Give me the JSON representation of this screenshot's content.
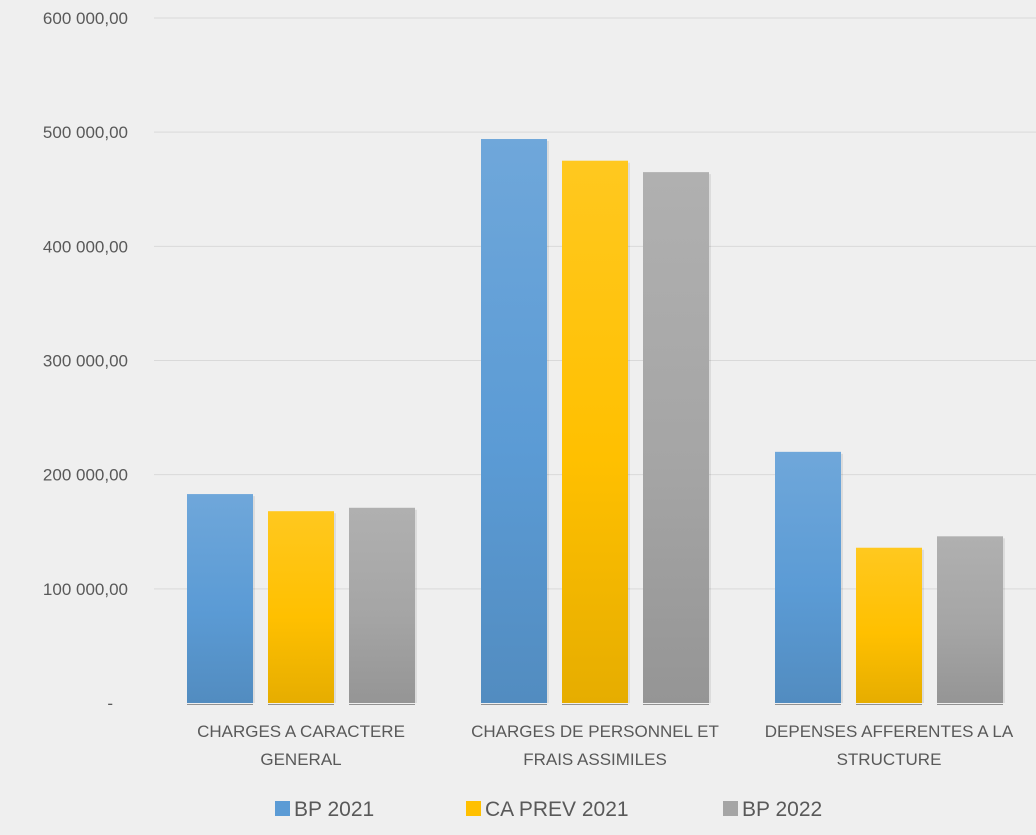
{
  "chart_data": {
    "type": "bar",
    "categories": [
      [
        "CHARGES A CARACTERE",
        "GENERAL"
      ],
      [
        "CHARGES DE PERSONNEL ET",
        "FRAIS ASSIMILES"
      ],
      [
        "DEPENSES AFFERENTES A LA",
        "STRUCTURE"
      ]
    ],
    "series": [
      {
        "name": "BP 2021",
        "values": [
          183000,
          494000,
          220000
        ],
        "color": "#5b9bd5"
      },
      {
        "name": "CA PREV 2021",
        "values": [
          168000,
          475000,
          136000
        ],
        "color": "#ffc000"
      },
      {
        "name": "BP 2022",
        "values": [
          171000,
          465000,
          146000
        ],
        "color": "#a5a5a5"
      }
    ],
    "ylim": [
      0,
      600000
    ],
    "y_ticks": [
      {
        "value": 0,
        "label": "-"
      },
      {
        "value": 100000,
        "label": "100 000,00"
      },
      {
        "value": 200000,
        "label": "200 000,00"
      },
      {
        "value": 300000,
        "label": "300 000,00"
      },
      {
        "value": 400000,
        "label": "400 000,00"
      },
      {
        "value": 500000,
        "label": "500 000,00"
      },
      {
        "value": 600000,
        "label": "600 000,00"
      }
    ],
    "grid": true,
    "legend_position": "bottom"
  }
}
